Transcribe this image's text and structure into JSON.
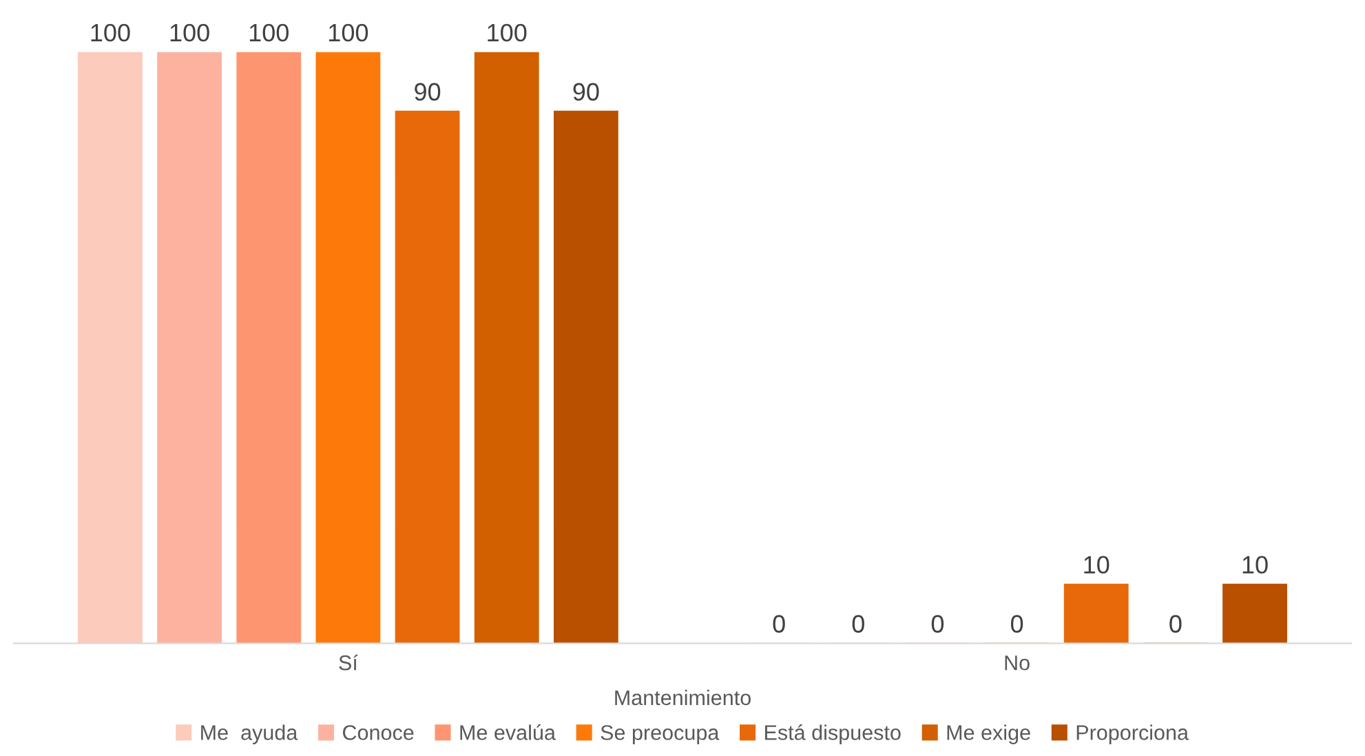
{
  "chart_data": {
    "type": "bar",
    "xlabel": "Mantenimiento",
    "categories": [
      "Sí",
      "No"
    ],
    "series": [
      {
        "name": "Me  ayuda",
        "color": "#fccbbb",
        "values": [
          100,
          0
        ]
      },
      {
        "name": "Conoce",
        "color": "#fdb2a0",
        "values": [
          100,
          0
        ]
      },
      {
        "name": "Me evalúa",
        "color": "#fd9670",
        "values": [
          100,
          0
        ]
      },
      {
        "name": "Se preocupa",
        "color": "#fd7a0a",
        "values": [
          100,
          0
        ]
      },
      {
        "name": "Está dispuesto",
        "color": "#e8690a",
        "values": [
          90,
          10
        ]
      },
      {
        "name": "Me exige",
        "color": "#d25f00",
        "values": [
          100,
          0
        ]
      },
      {
        "name": "Proporciona",
        "color": "#b85000",
        "values": [
          90,
          10
        ]
      }
    ],
    "data_labels": true,
    "legend": "bottom",
    "grid": false
  }
}
